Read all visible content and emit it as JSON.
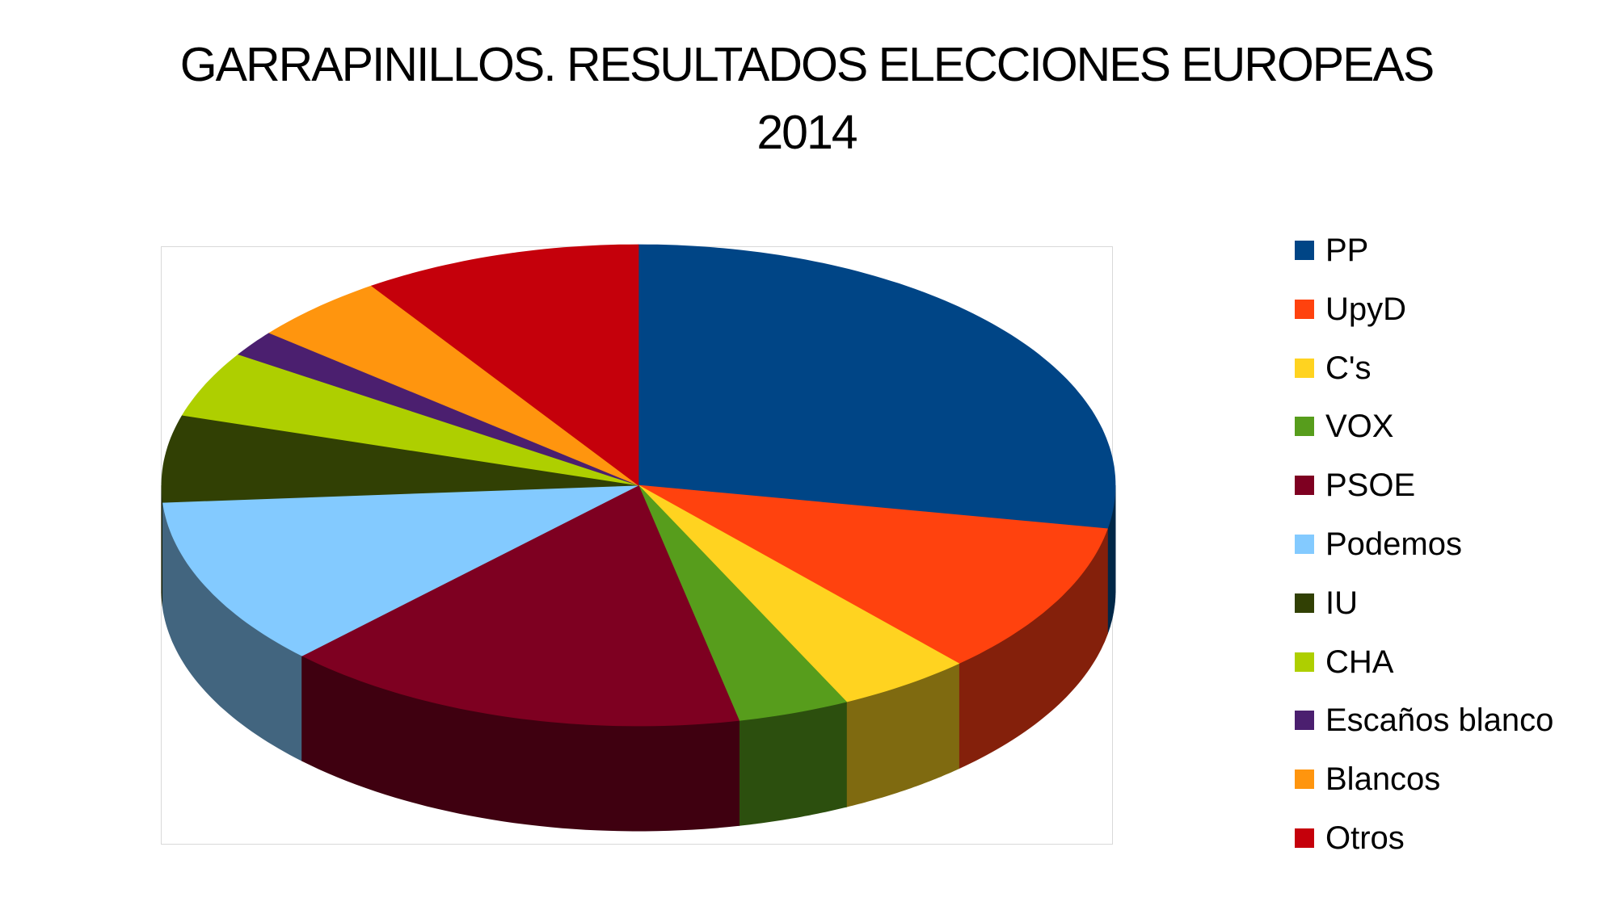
{
  "chart_data": {
    "type": "pie",
    "title_line1": "GARRAPINILLOS. RESULTADOS ELECCIONES EUROPEAS",
    "title_line2": "2014",
    "legend_position": "right",
    "three_d": true,
    "slices": [
      {
        "label": "PP",
        "value": 30.1,
        "color": "#004586",
        "side_color": "#002747"
      },
      {
        "label": "UpyD",
        "value": 11.2,
        "color": "#ff420e",
        "side_color": "#84200b"
      },
      {
        "label": "C's",
        "value": 4.9,
        "color": "#ffd320",
        "side_color": "#7f6a10"
      },
      {
        "label": "VOX",
        "value": 4.1,
        "color": "#579d1c",
        "side_color": "#2c4f0e"
      },
      {
        "label": "PSOE",
        "value": 17.1,
        "color": "#7e0021",
        "side_color": "#3f0010"
      },
      {
        "label": "Podemos",
        "value": 12.3,
        "color": "#83caff",
        "side_color": "#42657f"
      },
      {
        "label": "IU",
        "value": 6.3,
        "color": "#314004",
        "side_color": "#182002"
      },
      {
        "label": "CHA",
        "value": 4.8,
        "color": "#aecf00",
        "side_color": "#576800"
      },
      {
        "label": "Escaños blanco",
        "value": 1.9,
        "color": "#4b1f6f",
        "side_color": "#260f38"
      },
      {
        "label": "Blancos",
        "value": 5.0,
        "color": "#ff950e",
        "side_color": "#804a07"
      },
      {
        "label": "Otros",
        "value": 10.2,
        "color": "#c5000b",
        "side_color": "#630006"
      }
    ]
  }
}
